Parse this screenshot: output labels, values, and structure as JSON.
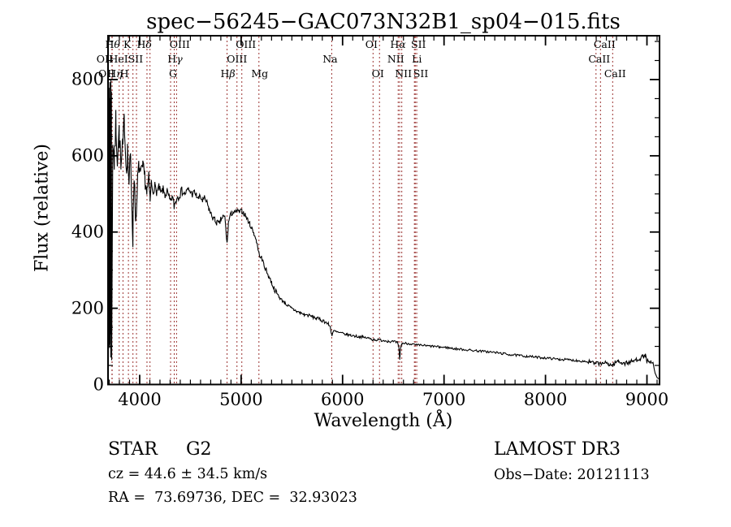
{
  "title": "spec−56245−GAC073N32B1_sp04−015.fits",
  "annotations": {
    "class_label": "STAR     G2",
    "cz": "cz = 44.6 ± 34.5 km/s",
    "radec": "RA =  73.69736, DEC =  32.93023",
    "survey": "LAMOST DR3",
    "obs_date": "Obs−Date: 20121113"
  },
  "chart_data": {
    "type": "line",
    "title": "spec−56245−GAC073N32B1_sp04−015.fits",
    "xlabel": "Wavelength (Å)",
    "ylabel": "Flux (relative)",
    "xlim": [
      3688,
      9124
    ],
    "ylim": [
      0,
      915
    ],
    "x_ticks": [
      4000,
      5000,
      6000,
      7000,
      8000,
      9000
    ],
    "y_ticks": [
      0,
      200,
      400,
      600,
      800
    ],
    "x_minor_step": 100,
    "y_minor_step": 50,
    "grid": false,
    "line_color": "#000000",
    "marker_line_color": "#9b3432",
    "spectral_lines": [
      {
        "w": 3727.0,
        "t": "OII",
        "row": 2,
        "dx": -9
      },
      {
        "w": 3728.8,
        "t": "OII",
        "row": 3,
        "dx": -7
      },
      {
        "w": 3797.9,
        "t": "Hθ",
        "row": 1,
        "dx": -8
      },
      {
        "w": 3835.4,
        "t": "Hη",
        "row": 3,
        "dx": -10
      },
      {
        "w": 3889.0,
        "t": "HeI",
        "row": 2,
        "dx": -12
      },
      {
        "w": 3933.7,
        "t": "K",
        "row": 1,
        "dx": -7
      },
      {
        "w": 3968.5,
        "t": "H",
        "row": 3,
        "dx": -15
      },
      {
        "w": 4072.0,
        "t": "SII",
        "row": 2,
        "dx": -14
      },
      {
        "w": 4101.7,
        "t": "Hδ",
        "row": 1,
        "dx": -7
      },
      {
        "w": 4304.6,
        "t": "G",
        "row": 3,
        "dx": 3
      },
      {
        "w": 4340.5,
        "t": "Hγ",
        "row": 2,
        "dx": 1
      },
      {
        "w": 4363.2,
        "t": "OIII",
        "row": 1,
        "dx": 4
      },
      {
        "w": 4861.3,
        "t": "Hβ",
        "row": 3,
        "dx": 1
      },
      {
        "w": 4958.9,
        "t": "OIII",
        "row": 2,
        "dx": 0
      },
      {
        "w": 5006.8,
        "t": "OIII",
        "row": 1,
        "dx": 5
      },
      {
        "w": 5175.4,
        "t": "Mg",
        "row": 3,
        "dx": 1
      },
      {
        "w": 5893.0,
        "t": "Na",
        "row": 2,
        "dx": -2
      },
      {
        "w": 6300.3,
        "t": "OI",
        "row": 1,
        "dx": -2
      },
      {
        "w": 6363.8,
        "t": "OI",
        "row": 3,
        "dx": -2
      },
      {
        "w": 6548.1,
        "t": "NII",
        "row": 2,
        "dx": -3
      },
      {
        "w": 6562.8,
        "t": "Hα",
        "row": 1,
        "dx": -2
      },
      {
        "w": 6583.5,
        "t": "NII",
        "row": 3,
        "dx": 2
      },
      {
        "w": 6707.9,
        "t": "Li",
        "row": 2,
        "dx": 3
      },
      {
        "w": 6716.4,
        "t": "SII",
        "row": 1,
        "dx": 4
      },
      {
        "w": 6730.8,
        "t": "SII",
        "row": 3,
        "dx": 5
      },
      {
        "w": 8498.0,
        "t": "CaII",
        "row": 2,
        "dx": 4
      },
      {
        "w": 8542.1,
        "t": "CaII",
        "row": 1,
        "dx": 5
      },
      {
        "w": 8662.1,
        "t": "CaII",
        "row": 3,
        "dx": 3
      }
    ],
    "series": [
      {
        "name": "flux",
        "points": [
          [
            3735,
            640
          ],
          [
            3750,
            580
          ],
          [
            3765,
            690
          ],
          [
            3780,
            600
          ],
          [
            3798,
            660
          ],
          [
            3815,
            560
          ],
          [
            3835,
            620
          ],
          [
            3850,
            700
          ],
          [
            3865,
            580
          ],
          [
            3880,
            610
          ],
          [
            3895,
            530
          ],
          [
            3910,
            590
          ],
          [
            3925,
            460
          ],
          [
            3933,
            390
          ],
          [
            3945,
            560
          ],
          [
            3955,
            480
          ],
          [
            3968,
            430
          ],
          [
            3980,
            540
          ],
          [
            3995,
            575
          ],
          [
            4010,
            545
          ],
          [
            4030,
            565
          ],
          [
            4050,
            545
          ],
          [
            4072,
            505
          ],
          [
            4090,
            535
          ],
          [
            4102,
            480
          ],
          [
            4115,
            525
          ],
          [
            4130,
            510
          ],
          [
            4150,
            520
          ],
          [
            4170,
            505
          ],
          [
            4190,
            515
          ],
          [
            4210,
            500
          ],
          [
            4230,
            510
          ],
          [
            4250,
            498
          ],
          [
            4270,
            505
          ],
          [
            4290,
            488
          ],
          [
            4304,
            478
          ],
          [
            4320,
            492
          ],
          [
            4340,
            468
          ],
          [
            4355,
            480
          ],
          [
            4363,
            488
          ],
          [
            4380,
            495
          ],
          [
            4400,
            502
          ],
          [
            4420,
            508
          ],
          [
            4440,
            500
          ],
          [
            4460,
            505
          ],
          [
            4480,
            512
          ],
          [
            4500,
            505
          ],
          [
            4520,
            498
          ],
          [
            4540,
            505
          ],
          [
            4560,
            495
          ],
          [
            4580,
            488
          ],
          [
            4600,
            492
          ],
          [
            4620,
            482
          ],
          [
            4640,
            488
          ],
          [
            4660,
            478
          ],
          [
            4680,
            462
          ],
          [
            4700,
            448
          ],
          [
            4720,
            438
          ],
          [
            4740,
            432
          ],
          [
            4760,
            425
          ],
          [
            4780,
            420
          ],
          [
            4800,
            432
          ],
          [
            4820,
            440
          ],
          [
            4840,
            438
          ],
          [
            4861,
            368
          ],
          [
            4875,
            425
          ],
          [
            4890,
            442
          ],
          [
            4905,
            448
          ],
          [
            4920,
            452
          ],
          [
            4940,
            450
          ],
          [
            4960,
            455
          ],
          [
            4980,
            452
          ],
          [
            5007,
            455
          ],
          [
            5025,
            450
          ],
          [
            5045,
            442
          ],
          [
            5065,
            432
          ],
          [
            5085,
            422
          ],
          [
            5105,
            410
          ],
          [
            5125,
            398
          ],
          [
            5150,
            378
          ],
          [
            5175,
            345
          ],
          [
            5200,
            332
          ],
          [
            5225,
            315
          ],
          [
            5250,
            298
          ],
          [
            5275,
            282
          ],
          [
            5300,
            268
          ],
          [
            5325,
            252
          ],
          [
            5350,
            240
          ],
          [
            5375,
            230
          ],
          [
            5400,
            222
          ],
          [
            5430,
            215
          ],
          [
            5460,
            207
          ],
          [
            5490,
            200
          ],
          [
            5520,
            196
          ],
          [
            5550,
            192
          ],
          [
            5580,
            188
          ],
          [
            5620,
            184
          ],
          [
            5660,
            181
          ],
          [
            5700,
            178
          ],
          [
            5740,
            174
          ],
          [
            5780,
            170
          ],
          [
            5820,
            166
          ],
          [
            5860,
            158
          ],
          [
            5880,
            150
          ],
          [
            5893,
            130
          ],
          [
            5910,
            140
          ],
          [
            5930,
            139
          ],
          [
            5960,
            136
          ],
          [
            6000,
            134
          ],
          [
            6040,
            131
          ],
          [
            6080,
            129
          ],
          [
            6120,
            127
          ],
          [
            6160,
            126
          ],
          [
            6200,
            124
          ],
          [
            6250,
            122
          ],
          [
            6300,
            118
          ],
          [
            6350,
            117
          ],
          [
            6400,
            116
          ],
          [
            6450,
            114
          ],
          [
            6500,
            112
          ],
          [
            6540,
            110
          ],
          [
            6555,
            95
          ],
          [
            6563,
            66
          ],
          [
            6572,
            95
          ],
          [
            6585,
            108
          ],
          [
            6620,
            108
          ],
          [
            6660,
            107
          ],
          [
            6700,
            105
          ],
          [
            6731,
            103
          ],
          [
            6780,
            103
          ],
          [
            6840,
            101
          ],
          [
            6900,
            100
          ],
          [
            6960,
            98
          ],
          [
            7020,
            97
          ],
          [
            7100,
            94
          ],
          [
            7180,
            92
          ],
          [
            7260,
            90
          ],
          [
            7340,
            88
          ],
          [
            7420,
            86
          ],
          [
            7500,
            84
          ],
          [
            7580,
            81
          ],
          [
            7660,
            78
          ],
          [
            7740,
            76
          ],
          [
            7820,
            74
          ],
          [
            7900,
            72
          ],
          [
            7980,
            70
          ],
          [
            8060,
            68
          ],
          [
            8140,
            66
          ],
          [
            8220,
            65
          ],
          [
            8300,
            63
          ],
          [
            8380,
            61
          ],
          [
            8440,
            59
          ],
          [
            8498,
            53
          ],
          [
            8520,
            58
          ],
          [
            8542,
            52
          ],
          [
            8565,
            58
          ],
          [
            8590,
            56
          ],
          [
            8620,
            54
          ],
          [
            8662,
            50
          ],
          [
            8690,
            58
          ],
          [
            8720,
            61
          ],
          [
            8750,
            58
          ],
          [
            8780,
            55
          ],
          [
            8810,
            57
          ],
          [
            8840,
            59
          ],
          [
            8870,
            62
          ],
          [
            8900,
            65
          ],
          [
            8930,
            69
          ],
          [
            8960,
            73
          ],
          [
            8985,
            76
          ],
          [
            9000,
            62
          ],
          [
            9020,
            56
          ],
          [
            9040,
            58
          ],
          [
            9060,
            55
          ],
          [
            9080,
            30
          ],
          [
            9100,
            18
          ],
          [
            9115,
            15
          ]
        ]
      }
    ],
    "noise_regions": [
      [
        3735,
        3960,
        40
      ],
      [
        3960,
        4120,
        25
      ],
      [
        4120,
        4450,
        13
      ],
      [
        4450,
        4860,
        9
      ],
      [
        4860,
        5350,
        7
      ],
      [
        5350,
        5900,
        5
      ],
      [
        5900,
        6560,
        3.5
      ],
      [
        6560,
        7600,
        3
      ],
      [
        7600,
        8400,
        3
      ],
      [
        8400,
        9070,
        6
      ]
    ],
    "edge_noise": {
      "wavelength_range": [
        3688,
        3724
      ],
      "flux_range": [
        40,
        815
      ]
    }
  }
}
